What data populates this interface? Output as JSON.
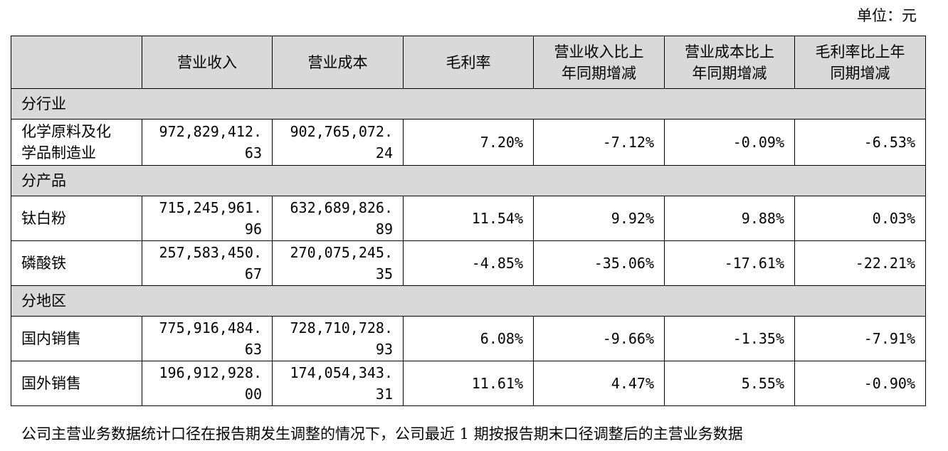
{
  "unit": "单位：元",
  "headers": [
    "",
    "营业收入",
    "营业成本",
    "毛利率",
    "营业收入比上年同期增减",
    "营业成本比上年同期增减",
    "毛利率比上年同期增减"
  ],
  "header_lines": [
    [
      ""
    ],
    [
      "营业收入"
    ],
    [
      "营业成本"
    ],
    [
      "毛利率"
    ],
    [
      "营业收入比上",
      "年同期增减"
    ],
    [
      "营业成本比上",
      "年同期增减"
    ],
    [
      "毛利率比上年",
      "同期增减"
    ]
  ],
  "sections": [
    {
      "title": "分行业",
      "rows": [
        {
          "name_lines": [
            "化学原料及化",
            "学品制造业"
          ],
          "revenue": [
            "972,829,412.",
            "63"
          ],
          "cost": [
            "902,765,072.",
            "24"
          ],
          "gross_margin": "7.20%",
          "revenue_change": "-7.12%",
          "cost_change": "-0.09%",
          "margin_change": "-6.53%"
        }
      ]
    },
    {
      "title": "分产品",
      "rows": [
        {
          "name_lines": [
            "钛白粉"
          ],
          "revenue": [
            "715,245,961.",
            "96"
          ],
          "cost": [
            "632,689,826.",
            "89"
          ],
          "gross_margin": "11.54%",
          "revenue_change": "9.92%",
          "cost_change": "9.88%",
          "margin_change": "0.03%"
        },
        {
          "name_lines": [
            "磷酸铁"
          ],
          "revenue": [
            "257,583,450.",
            "67"
          ],
          "cost": [
            "270,075,245.",
            "35"
          ],
          "gross_margin": "-4.85%",
          "revenue_change": "-35.06%",
          "cost_change": "-17.61%",
          "margin_change": "-22.21%"
        }
      ]
    },
    {
      "title": "分地区",
      "rows": [
        {
          "name_lines": [
            "国内销售"
          ],
          "revenue": [
            "775,916,484.",
            "63"
          ],
          "cost": [
            "728,710,728.",
            "93"
          ],
          "gross_margin": "6.08%",
          "revenue_change": "-9.66%",
          "cost_change": "-1.35%",
          "margin_change": "-7.91%"
        },
        {
          "name_lines": [
            "国外销售"
          ],
          "revenue": [
            "196,912,928.",
            "00"
          ],
          "cost": [
            "174,054,343.",
            "31"
          ],
          "gross_margin": "11.61%",
          "revenue_change": "4.47%",
          "cost_change": "5.55%",
          "margin_change": "-0.90%"
        }
      ]
    }
  ],
  "footer": "公司主营业务数据统计口径在报告期发生调整的情况下，公司最近 1 期按报告期末口径调整后的主营业务数据"
}
